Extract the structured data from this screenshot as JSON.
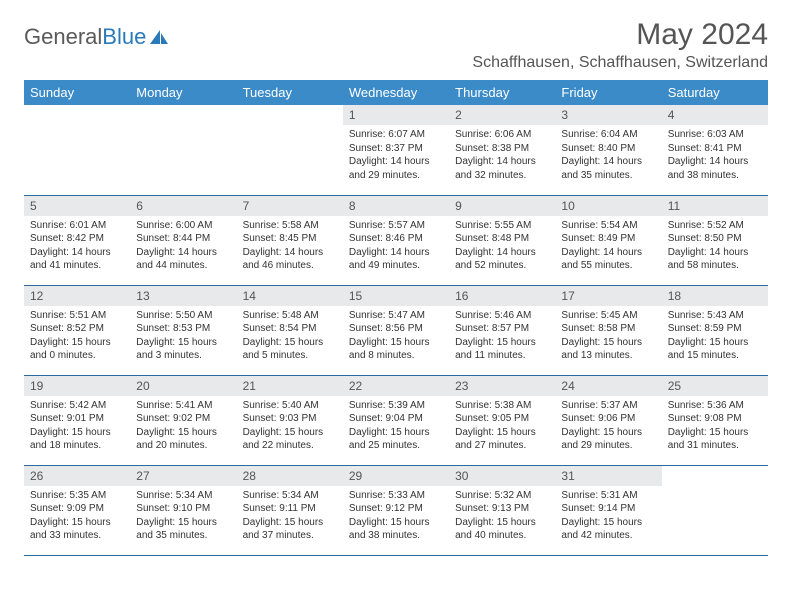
{
  "brand": {
    "part1": "General",
    "part2": "Blue"
  },
  "title": "May 2024",
  "location": "Schaffhausen, Schaffhausen, Switzerland",
  "colors": {
    "header_bg": "#3b8bc9",
    "daynum_bg": "#e8e9ea",
    "border": "#2a6aa0",
    "brand_blue": "#2a7ab9"
  },
  "weekdays": [
    "Sunday",
    "Monday",
    "Tuesday",
    "Wednesday",
    "Thursday",
    "Friday",
    "Saturday"
  ],
  "first_weekday_index": 3,
  "days_in_month": 31,
  "days": {
    "1": {
      "sunrise": "6:07 AM",
      "sunset": "8:37 PM",
      "daylight": "14 hours and 29 minutes."
    },
    "2": {
      "sunrise": "6:06 AM",
      "sunset": "8:38 PM",
      "daylight": "14 hours and 32 minutes."
    },
    "3": {
      "sunrise": "6:04 AM",
      "sunset": "8:40 PM",
      "daylight": "14 hours and 35 minutes."
    },
    "4": {
      "sunrise": "6:03 AM",
      "sunset": "8:41 PM",
      "daylight": "14 hours and 38 minutes."
    },
    "5": {
      "sunrise": "6:01 AM",
      "sunset": "8:42 PM",
      "daylight": "14 hours and 41 minutes."
    },
    "6": {
      "sunrise": "6:00 AM",
      "sunset": "8:44 PM",
      "daylight": "14 hours and 44 minutes."
    },
    "7": {
      "sunrise": "5:58 AM",
      "sunset": "8:45 PM",
      "daylight": "14 hours and 46 minutes."
    },
    "8": {
      "sunrise": "5:57 AM",
      "sunset": "8:46 PM",
      "daylight": "14 hours and 49 minutes."
    },
    "9": {
      "sunrise": "5:55 AM",
      "sunset": "8:48 PM",
      "daylight": "14 hours and 52 minutes."
    },
    "10": {
      "sunrise": "5:54 AM",
      "sunset": "8:49 PM",
      "daylight": "14 hours and 55 minutes."
    },
    "11": {
      "sunrise": "5:52 AM",
      "sunset": "8:50 PM",
      "daylight": "14 hours and 58 minutes."
    },
    "12": {
      "sunrise": "5:51 AM",
      "sunset": "8:52 PM",
      "daylight": "15 hours and 0 minutes."
    },
    "13": {
      "sunrise": "5:50 AM",
      "sunset": "8:53 PM",
      "daylight": "15 hours and 3 minutes."
    },
    "14": {
      "sunrise": "5:48 AM",
      "sunset": "8:54 PM",
      "daylight": "15 hours and 5 minutes."
    },
    "15": {
      "sunrise": "5:47 AM",
      "sunset": "8:56 PM",
      "daylight": "15 hours and 8 minutes."
    },
    "16": {
      "sunrise": "5:46 AM",
      "sunset": "8:57 PM",
      "daylight": "15 hours and 11 minutes."
    },
    "17": {
      "sunrise": "5:45 AM",
      "sunset": "8:58 PM",
      "daylight": "15 hours and 13 minutes."
    },
    "18": {
      "sunrise": "5:43 AM",
      "sunset": "8:59 PM",
      "daylight": "15 hours and 15 minutes."
    },
    "19": {
      "sunrise": "5:42 AM",
      "sunset": "9:01 PM",
      "daylight": "15 hours and 18 minutes."
    },
    "20": {
      "sunrise": "5:41 AM",
      "sunset": "9:02 PM",
      "daylight": "15 hours and 20 minutes."
    },
    "21": {
      "sunrise": "5:40 AM",
      "sunset": "9:03 PM",
      "daylight": "15 hours and 22 minutes."
    },
    "22": {
      "sunrise": "5:39 AM",
      "sunset": "9:04 PM",
      "daylight": "15 hours and 25 minutes."
    },
    "23": {
      "sunrise": "5:38 AM",
      "sunset": "9:05 PM",
      "daylight": "15 hours and 27 minutes."
    },
    "24": {
      "sunrise": "5:37 AM",
      "sunset": "9:06 PM",
      "daylight": "15 hours and 29 minutes."
    },
    "25": {
      "sunrise": "5:36 AM",
      "sunset": "9:08 PM",
      "daylight": "15 hours and 31 minutes."
    },
    "26": {
      "sunrise": "5:35 AM",
      "sunset": "9:09 PM",
      "daylight": "15 hours and 33 minutes."
    },
    "27": {
      "sunrise": "5:34 AM",
      "sunset": "9:10 PM",
      "daylight": "15 hours and 35 minutes."
    },
    "28": {
      "sunrise": "5:34 AM",
      "sunset": "9:11 PM",
      "daylight": "15 hours and 37 minutes."
    },
    "29": {
      "sunrise": "5:33 AM",
      "sunset": "9:12 PM",
      "daylight": "15 hours and 38 minutes."
    },
    "30": {
      "sunrise": "5:32 AM",
      "sunset": "9:13 PM",
      "daylight": "15 hours and 40 minutes."
    },
    "31": {
      "sunrise": "5:31 AM",
      "sunset": "9:14 PM",
      "daylight": "15 hours and 42 minutes."
    }
  },
  "labels": {
    "sunrise": "Sunrise:",
    "sunset": "Sunset:",
    "daylight": "Daylight:"
  }
}
